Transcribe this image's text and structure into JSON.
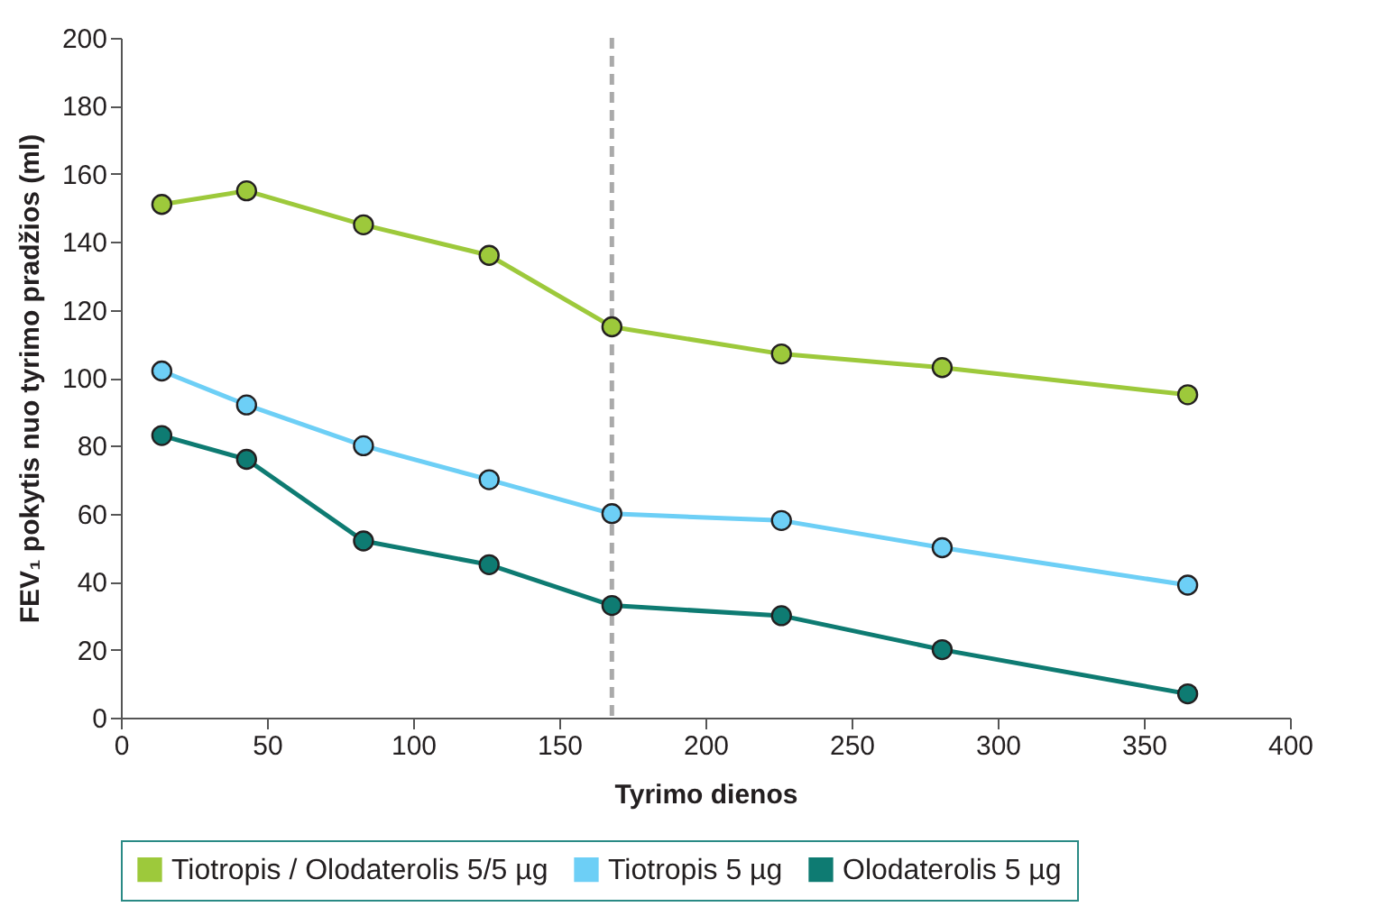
{
  "chart_data": {
    "type": "line",
    "xlabel": "Tyrimo dienos",
    "ylabel": "FEV₁ pokytis nuo tyrimo pradžios (ml)",
    "x": [
      14,
      43,
      83,
      126,
      168,
      226,
      281,
      365
    ],
    "series": [
      {
        "name": "Tiotropis / Olodaterolis 5/5 µg",
        "color": "#9dc93b",
        "values": [
          151,
          155,
          145,
          136,
          115,
          107,
          103,
          95
        ]
      },
      {
        "name": "Tiotropis 5 µg",
        "color": "#6dcff6",
        "values": [
          102,
          92,
          80,
          70,
          60,
          58,
          50,
          39
        ]
      },
      {
        "name": "Olodaterolis 5 µg",
        "color": "#0e7b72",
        "values": [
          83,
          76,
          52,
          45,
          33,
          30,
          20,
          7
        ]
      }
    ],
    "xlim": [
      0,
      400
    ],
    "xticks": [
      0,
      50,
      100,
      150,
      200,
      250,
      300,
      350,
      400
    ],
    "ylim": [
      0,
      200
    ],
    "yticks": [
      0,
      20,
      40,
      60,
      80,
      100,
      120,
      140,
      160,
      180,
      200
    ],
    "ref_lines": [
      {
        "axis": "x",
        "value": 168,
        "color": "#aaaaaa",
        "line_style": "dashed"
      }
    ],
    "grid": false,
    "legend": "bottom",
    "marker": "circle",
    "line_style": "solid"
  }
}
